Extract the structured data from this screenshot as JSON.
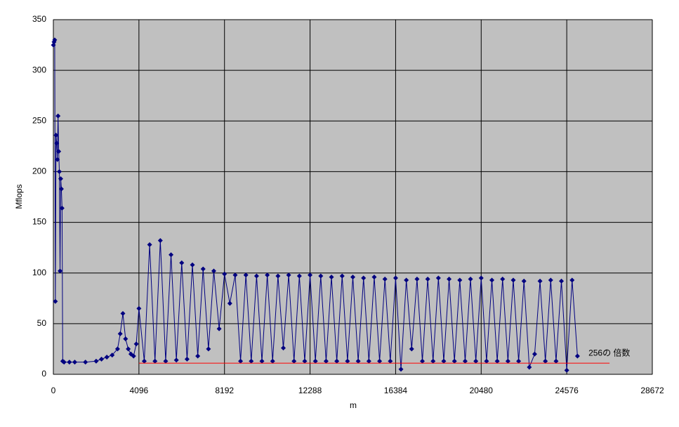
{
  "chart_data": {
    "type": "line",
    "xlabel": "m",
    "ylabel": "Mflops",
    "xlim": [
      0,
      28672
    ],
    "xticks": [
      0,
      4096,
      8192,
      12288,
      16384,
      20480,
      24576,
      28672
    ],
    "ylim": [
      0,
      350
    ],
    "yticks": [
      0,
      50,
      100,
      150,
      200,
      250,
      300,
      350
    ],
    "grid": true,
    "plot_background": "#c0c0c0",
    "series": [
      {
        "color": "#000080",
        "markers": true,
        "x": [
          0,
          32,
          64,
          96,
          128,
          160,
          192,
          224,
          256,
          288,
          320,
          352,
          384,
          416,
          448,
          512,
          768,
          1024,
          1536,
          2048,
          2304,
          2560,
          2816,
          3072,
          3200,
          3328,
          3456,
          3584,
          3712,
          3840,
          3968,
          4096,
          4352,
          4608,
          4864,
          5120,
          5376,
          5632,
          5888,
          6144,
          6400,
          6656,
          6912,
          7168,
          7424,
          7680,
          7936,
          8192,
          8448,
          8704,
          8960,
          9216,
          9472,
          9728,
          9984,
          10240,
          10496,
          10752,
          11008,
          11264,
          11520,
          11776,
          12032,
          12288,
          12544,
          12800,
          13056,
          13312,
          13568,
          13824,
          14080,
          14336,
          14592,
          14848,
          15104,
          15360,
          15616,
          15872,
          16128,
          16384,
          16640,
          16896,
          17152,
          17408,
          17664,
          17920,
          18176,
          18432,
          18688,
          18944,
          19200,
          19456,
          19712,
          19968,
          20224,
          20480,
          20736,
          20992,
          21248,
          21504,
          21760,
          22016,
          22272,
          22528,
          22784,
          23040,
          23296,
          23552,
          23808,
          24064,
          24320,
          24576,
          24832,
          25088
        ],
        "values": [
          325,
          328,
          330,
          72,
          236,
          228,
          212,
          255,
          220,
          200,
          102,
          193,
          183,
          164,
          13,
          12,
          12,
          12,
          12,
          13,
          15,
          17,
          19,
          25,
          40,
          60,
          35,
          25,
          20,
          18,
          30,
          65,
          13,
          128,
          13,
          132,
          13,
          118,
          14,
          110,
          15,
          108,
          18,
          104,
          25,
          102,
          45,
          99,
          70,
          98,
          13,
          98,
          13,
          97,
          13,
          98,
          13,
          97,
          26,
          98,
          13,
          97,
          13,
          98,
          13,
          97,
          13,
          96,
          13,
          97,
          13,
          96,
          13,
          95,
          13,
          96,
          13,
          94,
          13,
          95,
          5,
          93,
          25,
          94,
          13,
          94,
          13,
          95,
          13,
          94,
          13,
          93,
          13,
          94,
          13,
          95,
          13,
          93,
          13,
          94,
          13,
          93,
          13,
          92,
          7,
          20,
          92,
          13,
          93,
          13,
          92,
          4,
          93,
          18
        ]
      },
      {
        "name": "256の 倍数",
        "color": "#ff0000",
        "markers": false,
        "x": [
          4096,
          26624
        ],
        "values": [
          11,
          11
        ]
      }
    ]
  }
}
